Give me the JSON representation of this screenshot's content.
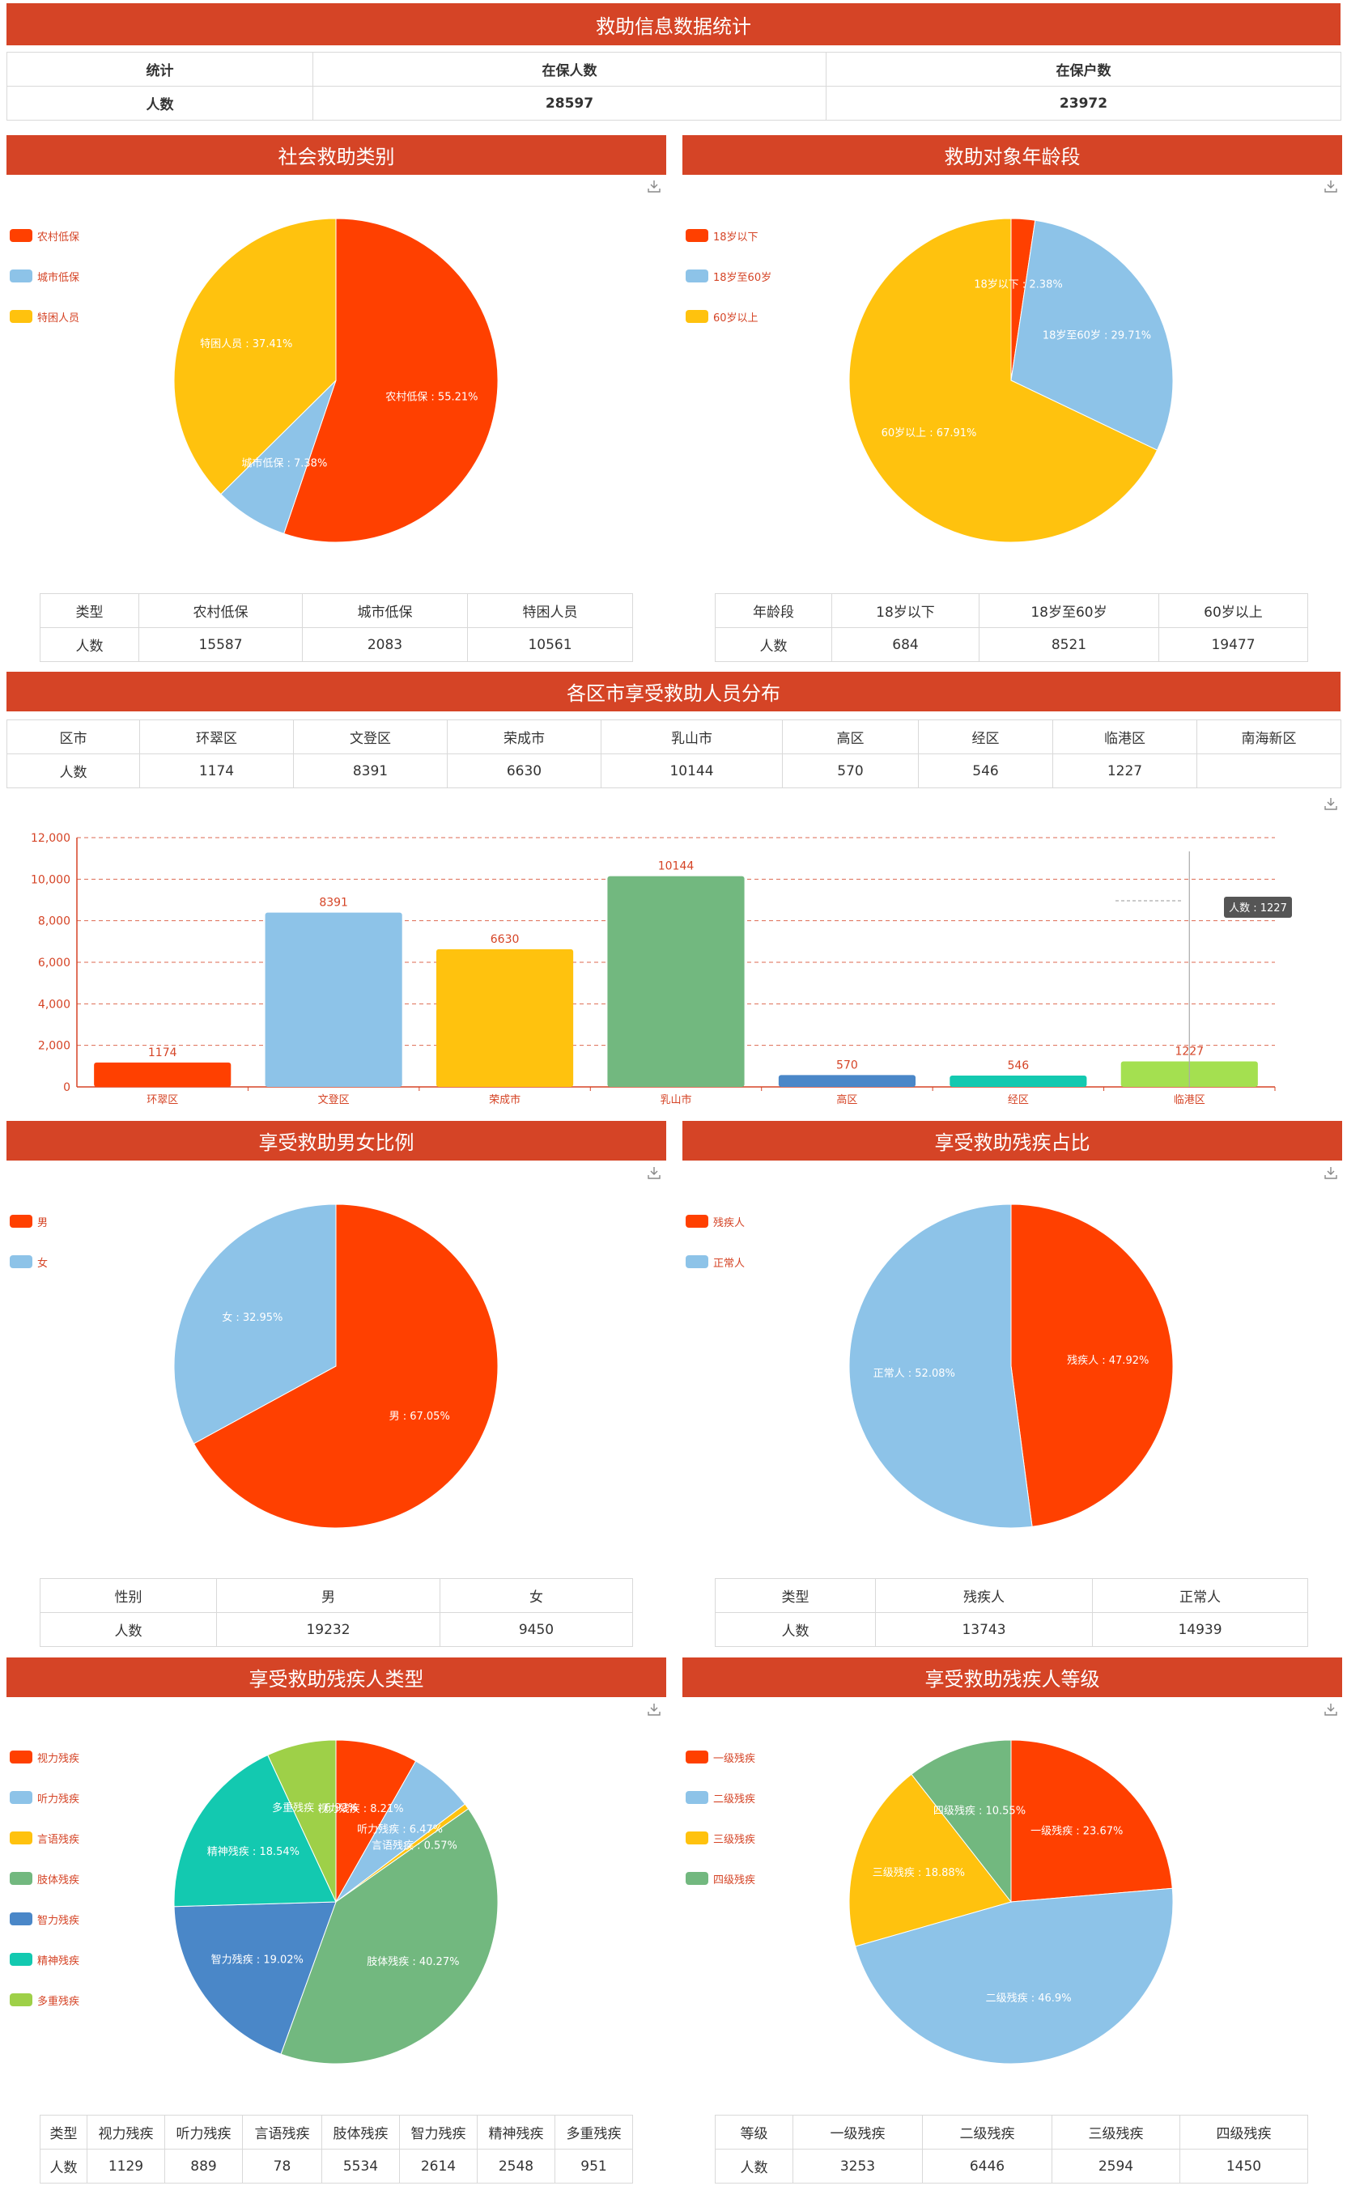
{
  "header": {
    "title": "救助信息数据统计",
    "table": {
      "headers": [
        "统计",
        "在保人数",
        "在保户数"
      ],
      "row": [
        "人数",
        "28597",
        "23972"
      ]
    }
  },
  "social": {
    "title": "社会救助类别",
    "legend": [
      "农村低保",
      "城市低保",
      "特困人员"
    ],
    "slice_labels": [
      "农村低保 : 55.21%",
      "城市低保 : 7.38%",
      "特困人员 : 37.41%"
    ],
    "table": {
      "headers": [
        "类型",
        "农村低保",
        "城市低保",
        "特困人员"
      ],
      "row": [
        "人数",
        "15587",
        "2083",
        "10561"
      ]
    },
    "chart_data": {
      "type": "pie",
      "categories": [
        "农村低保",
        "城市低保",
        "特困人员"
      ],
      "values": [
        55.21,
        7.38,
        37.41
      ],
      "colors": [
        "#ff4000",
        "#8dc3e8",
        "#ffc20e"
      ]
    }
  },
  "age": {
    "title": "救助对象年龄段",
    "legend": [
      "18岁以下",
      "18岁至60岁",
      "60岁以上"
    ],
    "slice_labels": [
      "18岁以下 : 2.38%",
      "18岁至60岁 : 29.71%",
      "60岁以上 : 67.91%"
    ],
    "table": {
      "headers": [
        "年龄段",
        "18岁以下",
        "18岁至60岁",
        "60岁以上"
      ],
      "row": [
        "人数",
        "684",
        "8521",
        "19477"
      ]
    },
    "chart_data": {
      "type": "pie",
      "categories": [
        "18岁以下",
        "18岁至60岁",
        "60岁以上"
      ],
      "values": [
        2.38,
        29.71,
        67.91
      ],
      "colors": [
        "#ff4000",
        "#8dc3e8",
        "#ffc20e"
      ]
    }
  },
  "district": {
    "title": "各区市享受救助人员分布",
    "table": {
      "headers": [
        "区市",
        "环翠区",
        "文登区",
        "荣成市",
        "乳山市",
        "高区",
        "经区",
        "临港区",
        "南海新区"
      ],
      "row": [
        "人数",
        "1174",
        "8391",
        "6630",
        "10144",
        "570",
        "546",
        "1227",
        ""
      ]
    },
    "tooltip": "人数 : 1227",
    "chart_data": {
      "type": "bar",
      "categories": [
        "环翠区",
        "文登区",
        "荣成市",
        "乳山市",
        "高区",
        "经区",
        "临港区"
      ],
      "values": [
        1174,
        8391,
        6630,
        10144,
        570,
        546,
        1227
      ],
      "colors": [
        "#ff4000",
        "#8dc3e8",
        "#ffc20e",
        "#72b87f",
        "#4a87c8",
        "#13c9b0",
        "#a4e050"
      ],
      "ylim": [
        0,
        12000
      ],
      "yticks": [
        "0",
        "2,000",
        "4,000",
        "6,000",
        "8,000",
        "10,000",
        "12,000"
      ]
    }
  },
  "gender": {
    "title": "享受救助男女比例",
    "legend": [
      "男",
      "女"
    ],
    "slice_labels": [
      "男 : 67.05%",
      "女 : 32.95%"
    ],
    "table": {
      "headers": [
        "性别",
        "男",
        "女"
      ],
      "row": [
        "人数",
        "19232",
        "9450"
      ]
    },
    "chart_data": {
      "type": "pie",
      "categories": [
        "男",
        "女"
      ],
      "values": [
        67.05,
        32.95
      ],
      "colors": [
        "#ff4000",
        "#8dc3e8"
      ]
    }
  },
  "disability": {
    "title": "享受救助残疾占比",
    "legend": [
      "残疾人",
      "正常人"
    ],
    "slice_labels": [
      "残疾人 : 47.92%",
      "正常人 : 52.08%"
    ],
    "table": {
      "headers": [
        "类型",
        "残疾人",
        "正常人"
      ],
      "row": [
        "人数",
        "13743",
        "14939"
      ]
    },
    "chart_data": {
      "type": "pie",
      "categories": [
        "残疾人",
        "正常人"
      ],
      "values": [
        47.92,
        52.08
      ],
      "colors": [
        "#ff4000",
        "#8dc3e8"
      ]
    }
  },
  "dtype": {
    "title": "享受救助残疾人类型",
    "legend": [
      "视力残疾",
      "听力残疾",
      "言语残疾",
      "肢体残疾",
      "智力残疾",
      "精神残疾",
      "多重残疾"
    ],
    "slice_labels": [
      "视力残疾 : 8.21%",
      "听力残疾 : 6.47%",
      "言语残疾 : 0.57%",
      "肢体残疾 : 40.27%",
      "智力残疾 : 19.02%",
      "精神残疾 : 18.54%",
      "多重残疾 : 6.92%"
    ],
    "table": {
      "headers": [
        "类型",
        "视力残疾",
        "听力残疾",
        "言语残疾",
        "肢体残疾",
        "智力残疾",
        "精神残疾",
        "多重残疾"
      ],
      "row": [
        "人数",
        "1129",
        "889",
        "78",
        "5534",
        "2614",
        "2548",
        "951"
      ]
    },
    "chart_data": {
      "type": "pie",
      "categories": [
        "视力残疾",
        "听力残疾",
        "言语残疾",
        "肢体残疾",
        "智力残疾",
        "精神残疾",
        "多重残疾"
      ],
      "values": [
        8.21,
        6.47,
        0.57,
        40.27,
        19.02,
        18.54,
        6.92
      ],
      "colors": [
        "#ff4000",
        "#8dc3e8",
        "#ffc20e",
        "#72b87f",
        "#4a87c8",
        "#13c9b0",
        "#9ed048"
      ]
    }
  },
  "dlevel": {
    "title": "享受救助残疾人等级",
    "legend": [
      "一级残疾",
      "二级残疾",
      "三级残疾",
      "四级残疾"
    ],
    "slice_labels": [
      "一级残疾 : 23.67%",
      "二级残疾 : 46.9%",
      "三级残疾 : 18.88%",
      "四级残疾 : 10.55%"
    ],
    "table": {
      "headers": [
        "等级",
        "一级残疾",
        "二级残疾",
        "三级残疾",
        "四级残疾"
      ],
      "row": [
        "人数",
        "3253",
        "6446",
        "2594",
        "1450"
      ]
    },
    "chart_data": {
      "type": "pie",
      "categories": [
        "一级残疾",
        "二级残疾",
        "三级残疾",
        "四级残疾"
      ],
      "values": [
        23.67,
        46.9,
        18.88,
        10.55
      ],
      "colors": [
        "#ff4000",
        "#8dc3e8",
        "#ffc20e",
        "#72b87f"
      ]
    }
  }
}
